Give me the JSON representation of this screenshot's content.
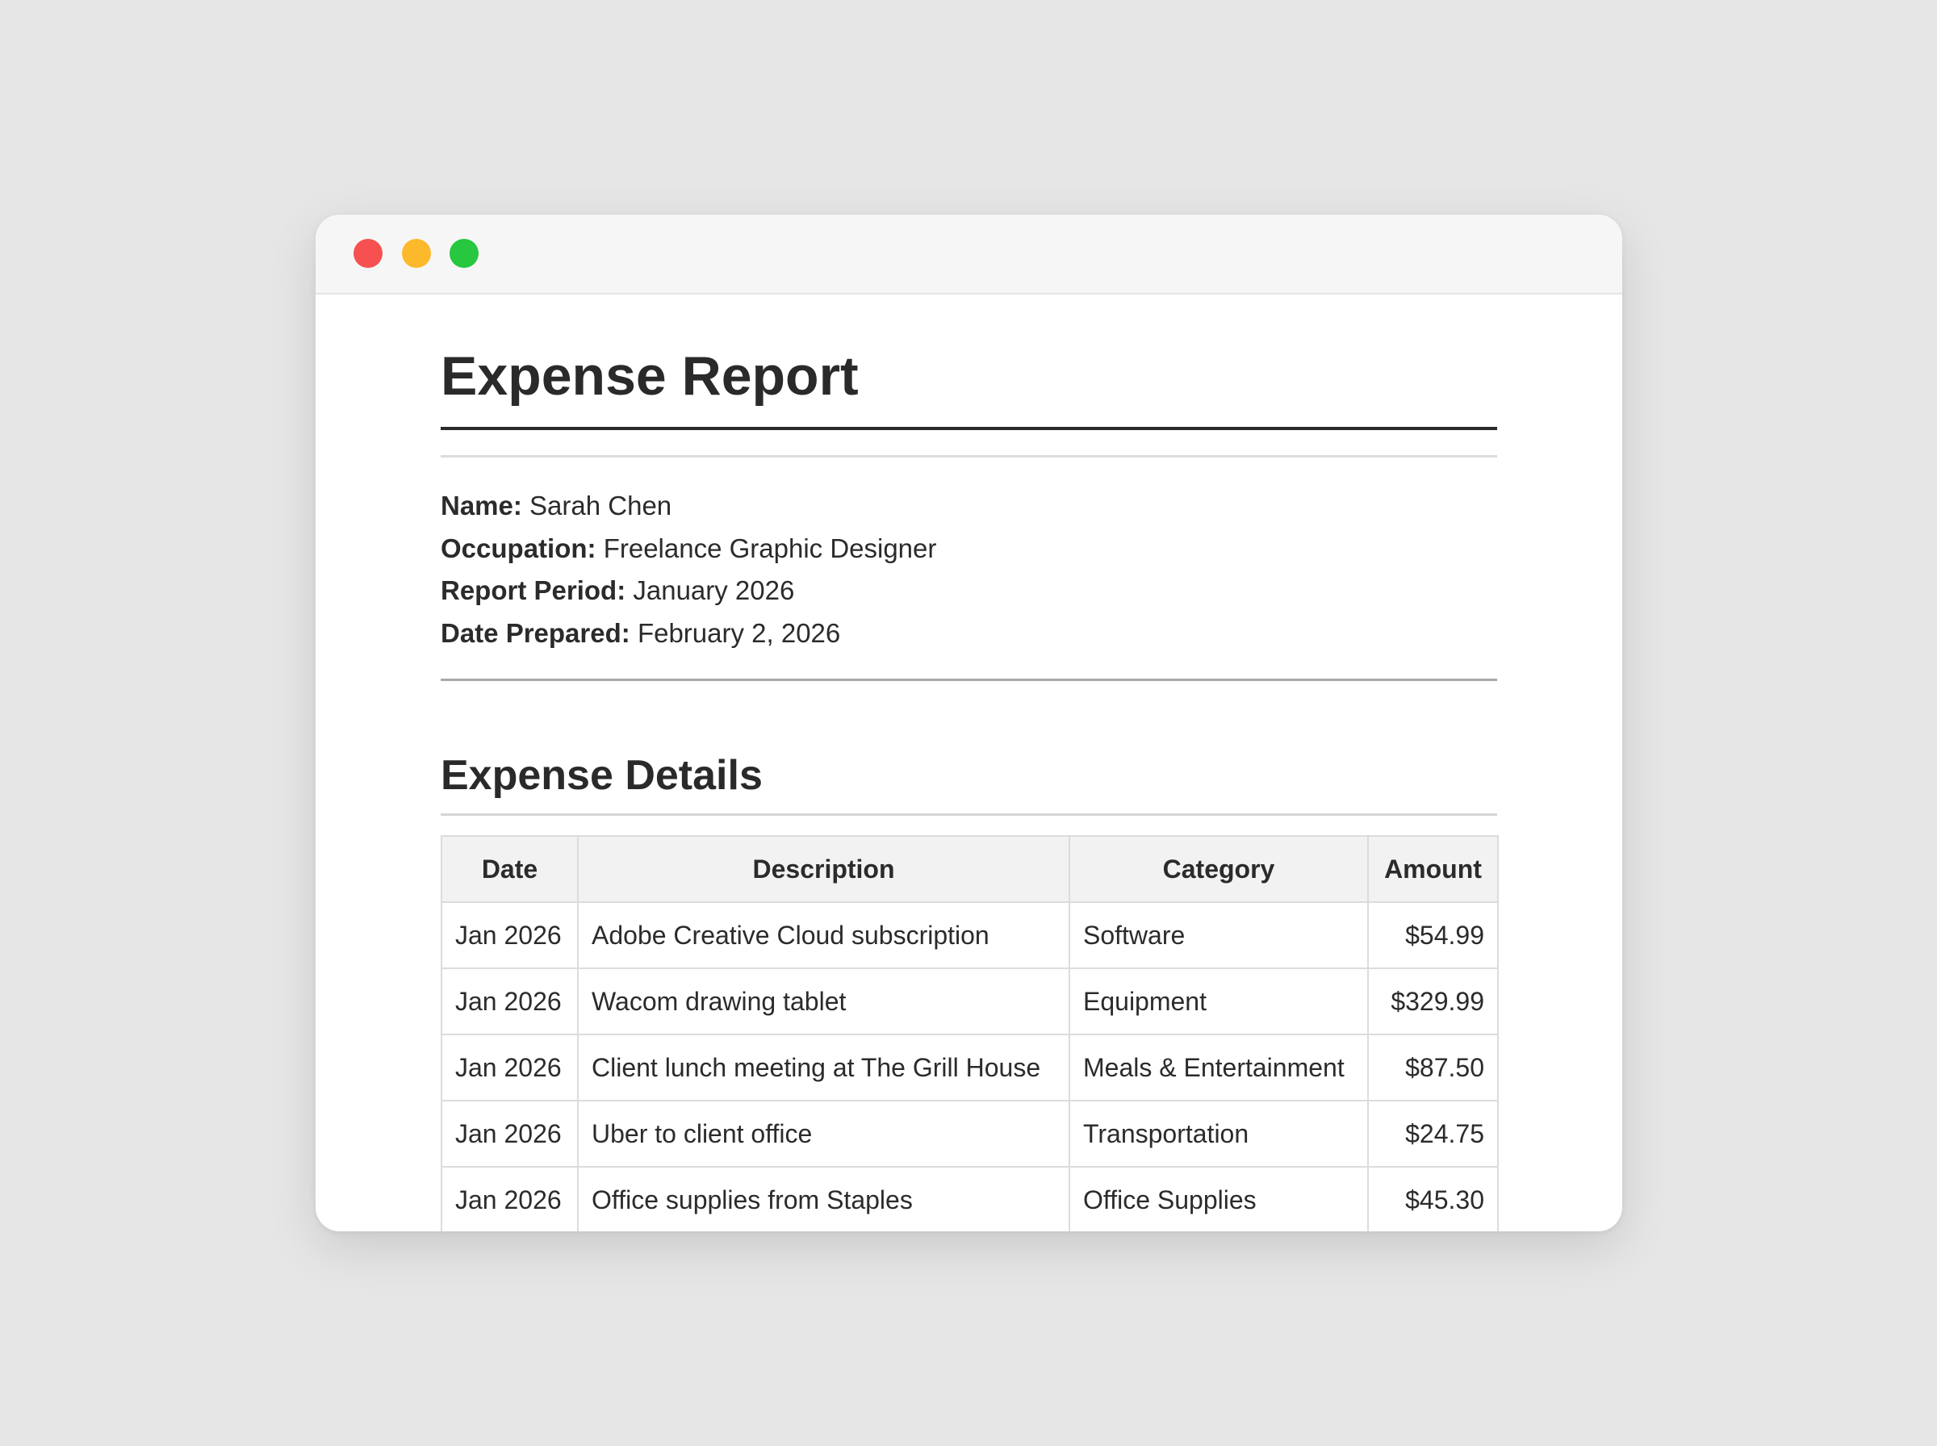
{
  "window": {
    "controls": {
      "close_color": "#f65150",
      "minimize_color": "#fdb92c",
      "maximize_color": "#27c73f"
    }
  },
  "document": {
    "title": "Expense Report",
    "info": [
      {
        "label": "Name:",
        "value": "Sarah Chen"
      },
      {
        "label": "Occupation:",
        "value": "Freelance Graphic Designer"
      },
      {
        "label": "Report Period:",
        "value": "January 2026"
      },
      {
        "label": "Date Prepared:",
        "value": "February 2, 2026"
      }
    ],
    "section_title": "Expense Details",
    "table": {
      "headers": [
        "Date",
        "Description",
        "Category",
        "Amount"
      ],
      "rows": [
        [
          "Jan 2026",
          "Adobe Creative Cloud subscription",
          "Software",
          "$54.99"
        ],
        [
          "Jan 2026",
          "Wacom drawing tablet",
          "Equipment",
          "$329.99"
        ],
        [
          "Jan 2026",
          "Client lunch meeting at The Grill House",
          "Meals & Entertainment",
          "$87.50"
        ],
        [
          "Jan 2026",
          "Uber to client office",
          "Transportation",
          "$24.75"
        ],
        [
          "Jan 2026",
          "Office supplies from Staples",
          "Office Supplies",
          "$45.30"
        ]
      ]
    }
  }
}
